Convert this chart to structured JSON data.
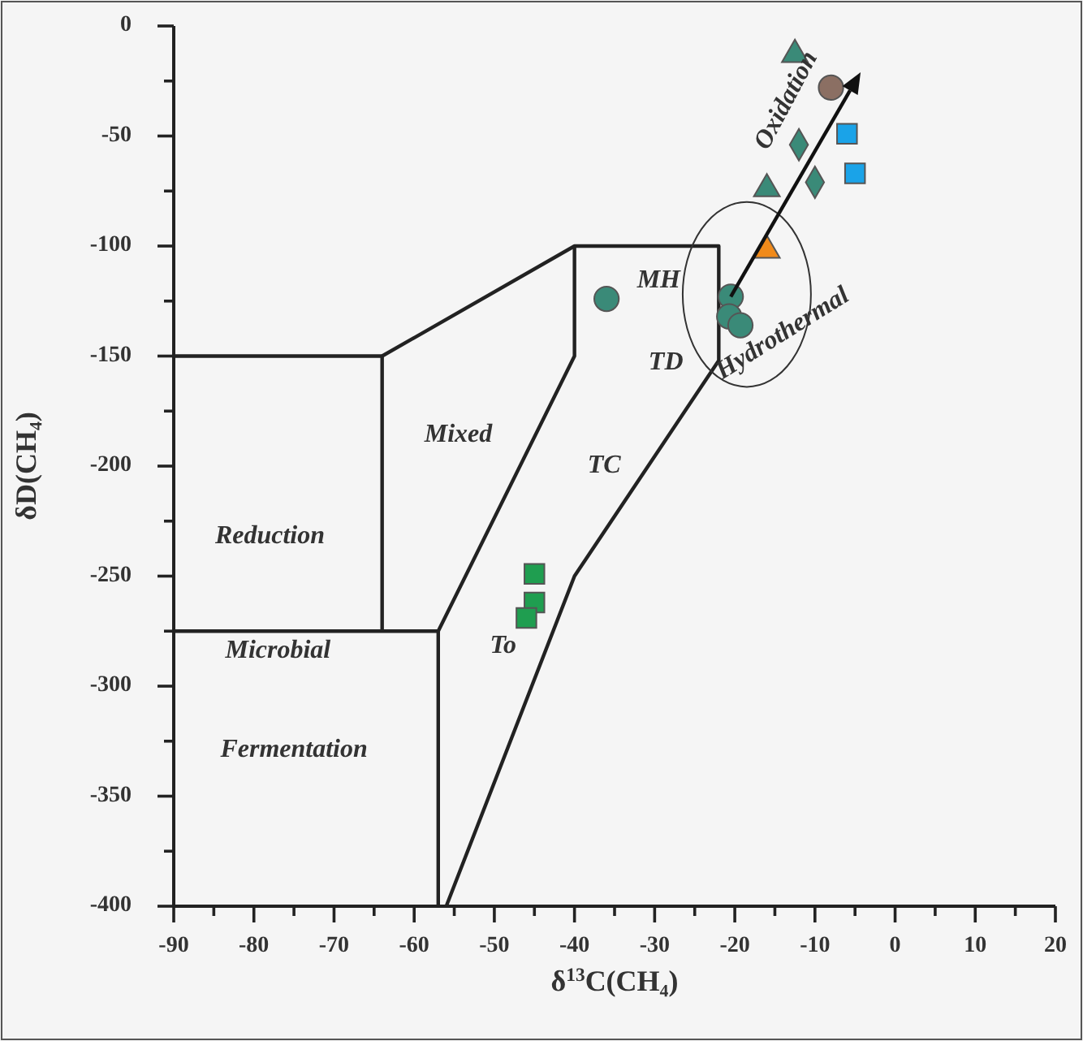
{
  "chart_data": {
    "type": "scatter",
    "xlabel": "δ$^{13}$C(CH₄)",
    "ylabel": "δD(CH₄)",
    "xlim": [
      -90,
      20
    ],
    "ylim": [
      -400,
      0
    ],
    "xticks": [
      -90,
      {
        "value": -85,
        "label": null
      },
      -80,
      {
        "value": -75,
        "label": null
      },
      -70,
      {
        "value": -65,
        "label": null
      },
      -60,
      {
        "value": -55,
        "label": null
      },
      -50,
      {
        "value": -45,
        "label": null
      },
      -40,
      {
        "value": -35,
        "label": null
      },
      -30,
      {
        "value": -25,
        "label": null
      },
      -20,
      {
        "value": -15,
        "label": null
      },
      -10,
      {
        "value": -5,
        "label": null
      },
      0,
      {
        "value": 5,
        "label": null
      },
      10,
      {
        "value": 15,
        "label": null
      },
      20
    ],
    "yticks": [
      -400,
      {
        "value": -375,
        "label": null
      },
      -350,
      {
        "value": -325,
        "label": null
      },
      -300,
      {
        "value": -275,
        "label": null
      },
      -250,
      {
        "value": -225,
        "label": null
      },
      -200,
      {
        "value": -175,
        "label": null
      },
      -150,
      {
        "value": -125,
        "label": null
      },
      -100,
      {
        "value": -75,
        "label": null
      },
      -50,
      {
        "value": -25,
        "label": null
      },
      0
    ],
    "grid": false,
    "series": [
      {
        "type": "line",
        "color": "#222222",
        "marker": "none",
        "x": [
          -90,
          -64,
          -64
        ],
        "values": [
          -150,
          -150,
          -275
        ]
      },
      {
        "type": "line",
        "color": "#222222",
        "marker": "none",
        "x": [
          -90,
          -57,
          -57
        ],
        "values": [
          -275,
          -275,
          -400
        ]
      },
      {
        "type": "line",
        "color": "#222222",
        "marker": "none",
        "x": [
          -64,
          -40,
          -22,
          -22,
          -40,
          -56
        ],
        "values": [
          -150,
          -100,
          -100,
          -152,
          -250,
          -400
        ]
      },
      {
        "type": "line",
        "color": "#222222",
        "marker": "none",
        "x": [
          -40,
          -40,
          -57
        ],
        "values": [
          -100,
          -150,
          -275
        ]
      },
      {
        "color": "#3a8a78",
        "marker": "circle",
        "x": [
          -36,
          -20.5,
          -20.7,
          -19.3
        ],
        "values": [
          -124,
          -123,
          -132,
          -136
        ]
      },
      {
        "color": "#3a8a78",
        "marker": "triangle",
        "x": [
          -12.5,
          -16
        ],
        "values": [
          -13,
          -74
        ]
      },
      {
        "color": "#3a8a78",
        "marker": "diamond",
        "x": [
          -12,
          -10
        ],
        "values": [
          -54,
          -71
        ]
      },
      {
        "color": "#8b6f63",
        "marker": "circle",
        "x": [
          -8
        ],
        "values": [
          -28
        ]
      },
      {
        "color": "#1aa3e8",
        "marker": "square",
        "x": [
          -6,
          -5
        ],
        "values": [
          -49,
          -67
        ]
      },
      {
        "color": "#f08a1a",
        "marker": "triangle",
        "x": [
          -16
        ],
        "values": [
          -102
        ]
      },
      {
        "color": "#1f9e50",
        "marker": "square",
        "x": [
          -45,
          -45,
          -46
        ],
        "values": [
          -249,
          -262,
          -269
        ]
      }
    ],
    "annotations": [
      "Reduction",
      "Microbial",
      "Fermentation",
      "Mixed",
      "TC",
      "TD",
      "MH",
      "To",
      "Hydrothermal",
      {
        "text": "Oxidation",
        "x": -20.5,
        "y": -123
      }
    ]
  }
}
